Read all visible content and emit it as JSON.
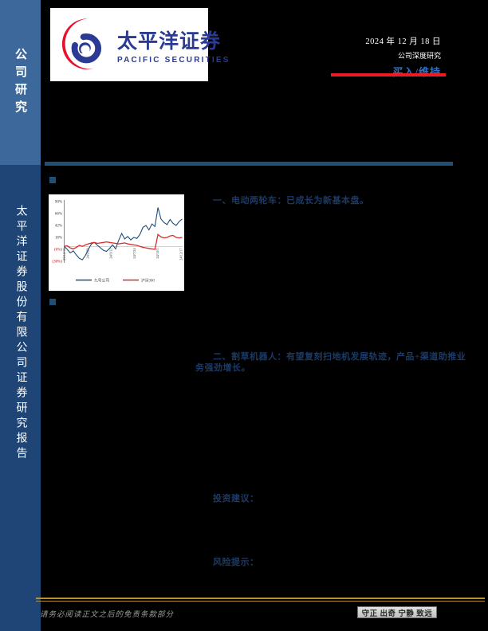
{
  "sidebar": {
    "top_label": "公司研究",
    "bottom_label": "太平洋证券股份有限公司证券研究报告",
    "top_bg": "#3D689B",
    "bottom_bg": "#1E4575"
  },
  "logo": {
    "name_cn": "太平洋证券",
    "name_en": "PACIFIC SECURITIES",
    "red": "#E8112D",
    "blue": "#2B3A92"
  },
  "header": {
    "date": "2024 年 12 月 18 日",
    "report_type": "公司深度研究",
    "rating": "买入/维持",
    "rating_color": "#2E74C6",
    "underline_color": "#ED1C24"
  },
  "sections": {
    "point_1": "一、电动两轮车：已成长为新基本盘。",
    "point_2": "二、割草机器人：有望复刻扫地机发展轨迹，产品+渠道助推业务强劲增长。",
    "advice_label": "投资建议：",
    "risk_label": "风险提示："
  },
  "chart_data": {
    "type": "line",
    "title": "",
    "xlabel": "",
    "ylabel": "",
    "ylim": [
      -30,
      90
    ],
    "grid": false,
    "legend_position": "bottom",
    "y_ticks": [
      90,
      66,
      42,
      18,
      -6,
      -30
    ],
    "y_tick_labels": [
      "90%",
      "66%",
      "42%",
      "18%",
      "(6%)",
      "(30%)"
    ],
    "x_tick_labels": [
      "23/12/18",
      "24/2/29",
      "24/5/12",
      "24/7/24",
      "24/10/5",
      "24/12/17"
    ],
    "series": [
      {
        "name": "九号公司",
        "color": "#1F4E79",
        "values": [
          0,
          -6,
          -13,
          -9,
          -17,
          -24,
          -27,
          -18,
          -6,
          5,
          8,
          2,
          -3,
          -8,
          -10,
          -4,
          3,
          -5,
          12,
          26,
          15,
          20,
          13,
          18,
          16,
          24,
          38,
          42,
          33,
          45,
          40,
          78,
          55,
          48,
          44,
          54,
          46,
          42,
          50,
          55
        ]
      },
      {
        "name": "沪深300",
        "color": "#D92B2B",
        "values": [
          0,
          1,
          -3,
          -5,
          -2,
          2,
          0,
          3,
          5,
          7,
          8,
          6,
          7,
          8,
          9,
          8,
          7,
          6,
          5,
          6,
          7,
          5,
          4,
          3,
          2,
          0,
          -2,
          -3,
          -4,
          -5,
          -6,
          24,
          19,
          17,
          18,
          21,
          22,
          18,
          17,
          18
        ]
      }
    ]
  },
  "footer": {
    "disclaimer": "请务必阅读正文之后的免责条款部分",
    "motto": "守正 出奇 宁静 致远",
    "line_color": "#B8922E"
  }
}
